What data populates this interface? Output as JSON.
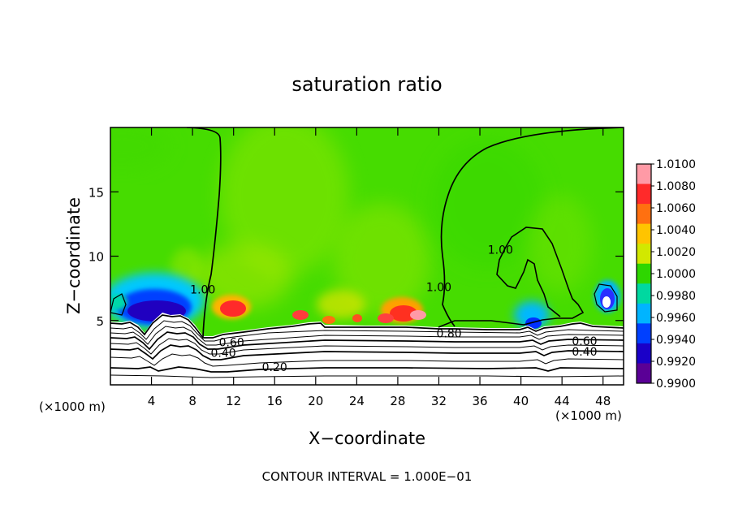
{
  "chart_data": {
    "type": "heatmap",
    "title": "saturation ratio",
    "xlabel": "X−coordinate",
    "ylabel": "Z−coordinate",
    "x_unit_label_left": "(×1000 m)",
    "x_unit_label_right": "(×1000 m)",
    "footer": "CONTOUR INTERVAL = 1.000E−01",
    "xlim": [
      0,
      50
    ],
    "ylim": [
      0,
      20
    ],
    "x_ticks": [
      4,
      8,
      12,
      16,
      20,
      24,
      28,
      32,
      36,
      40,
      44,
      48
    ],
    "x_tick_labels": [
      "4",
      "8",
      "12",
      "16",
      "20",
      "24",
      "28",
      "32",
      "36",
      "40",
      "44",
      "48"
    ],
    "y_ticks": [
      5,
      10,
      15
    ],
    "y_tick_labels": [
      "5",
      "10",
      "15"
    ],
    "colorbar": {
      "labels": [
        "1.0100",
        "1.0080",
        "1.0060",
        "1.0040",
        "1.0020",
        "1.0000",
        "0.9980",
        "0.9960",
        "0.9940",
        "0.9920",
        "0.9900"
      ],
      "colors": [
        "#ff9aa6",
        "#ff2a2a",
        "#ff7010",
        "#ffc400",
        "#d2e800",
        "#2ed600",
        "#00d8a0",
        "#00b4ff",
        "#0040ff",
        "#1a00c8",
        "#5a0096"
      ]
    },
    "contour_labels": [
      {
        "text": "1.00",
        "x": 9.0,
        "z": 7.4
      },
      {
        "text": "1.00",
        "x": 32.0,
        "z": 7.6
      },
      {
        "text": "1.00",
        "x": 38.0,
        "z": 10.5
      },
      {
        "text": "0.80",
        "x": 33.0,
        "z": 4.0
      },
      {
        "text": "0.60",
        "x": 11.8,
        "z": 3.3
      },
      {
        "text": "0.40",
        "x": 11.0,
        "z": 2.5
      },
      {
        "text": "0.20",
        "x": 16.0,
        "z": 1.4
      },
      {
        "text": "0.60",
        "x": 46.2,
        "z": 3.4
      },
      {
        "text": "0.40",
        "x": 46.2,
        "z": 2.6
      }
    ]
  }
}
